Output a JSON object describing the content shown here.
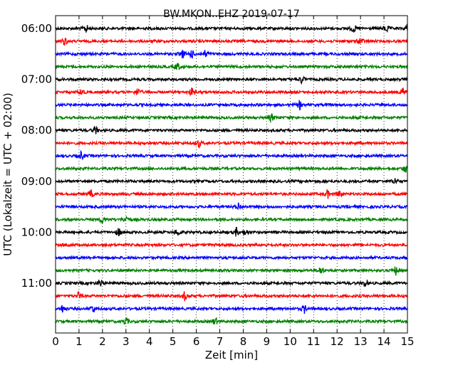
{
  "chart_data": {
    "type": "line",
    "title": "BW.MKON..EHZ 2019-07-17",
    "xlabel": "Zeit  [min]",
    "ylabel": "UTC (Lokalzeit = UTC + 02:00)",
    "xlim": [
      0,
      15
    ],
    "x_ticks": [
      0,
      1,
      2,
      3,
      4,
      5,
      6,
      7,
      8,
      9,
      10,
      11,
      12,
      13,
      14,
      15
    ],
    "x_grid": "dotted",
    "trace_interval_min": 15,
    "y_start": "06:00",
    "y_ticks": [
      "06:00",
      "07:00",
      "08:00",
      "09:00",
      "10:00",
      "11:00"
    ],
    "colors": [
      "#000000",
      "#ff0000",
      "#0000ff",
      "#008000"
    ],
    "series": [
      {
        "start": "06:00",
        "events_min": [
          1.3,
          12.7,
          14.1,
          15.0
        ]
      },
      {
        "start": "06:15",
        "events_min": [
          0.4,
          13.0
        ]
      },
      {
        "start": "06:30",
        "events_min": [
          5.4,
          5.8,
          6.4
        ]
      },
      {
        "start": "06:45",
        "events_min": [
          5.2
        ]
      },
      {
        "start": "07:00",
        "events_min": [
          10.5
        ]
      },
      {
        "start": "07:15",
        "events_min": [
          1.1,
          3.5,
          5.8,
          14.8
        ]
      },
      {
        "start": "07:30",
        "events_min": [
          10.4
        ]
      },
      {
        "start": "07:45",
        "events_min": [
          9.2
        ]
      },
      {
        "start": "08:00",
        "events_min": [
          1.7
        ]
      },
      {
        "start": "08:15",
        "events_min": [
          6.1
        ]
      },
      {
        "start": "08:30",
        "events_min": [
          1.1
        ]
      },
      {
        "start": "08:45",
        "events_min": [
          14.9
        ]
      },
      {
        "start": "09:00",
        "events_min": [
          14.5
        ]
      },
      {
        "start": "09:15",
        "events_min": [
          1.5,
          11.6,
          12.1
        ]
      },
      {
        "start": "09:30",
        "events_min": [
          7.8
        ]
      },
      {
        "start": "09:45",
        "events_min": [
          2.0,
          3.0
        ]
      },
      {
        "start": "10:00",
        "events_min": [
          2.7,
          5.2,
          7.7,
          8.1
        ]
      },
      {
        "start": "10:15",
        "events_min": []
      },
      {
        "start": "10:30",
        "events_min": []
      },
      {
        "start": "10:45",
        "events_min": [
          11.3,
          14.5
        ]
      },
      {
        "start": "11:00",
        "events_min": [
          1.9,
          13.2
        ]
      },
      {
        "start": "11:15",
        "events_min": [
          1.0,
          5.5
        ]
      },
      {
        "start": "11:30",
        "events_min": [
          0.3,
          1.6,
          10.6
        ]
      },
      {
        "start": "11:45",
        "events_min": [
          3.0,
          6.8
        ]
      }
    ]
  }
}
